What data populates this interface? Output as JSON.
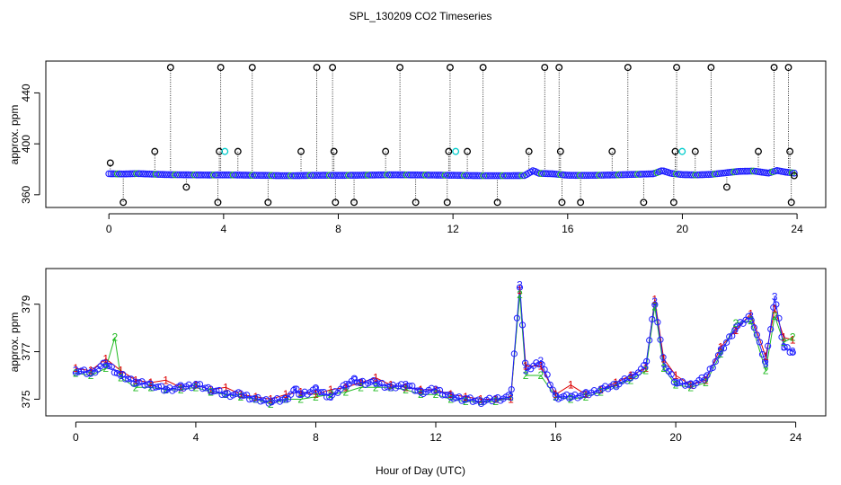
{
  "chart_data": [
    {
      "type": "scatter",
      "title": "SPL_130209  CO2 Timeseries",
      "xlabel": "",
      "ylabel": "approx. ppm",
      "xlim": [
        -2.2,
        25
      ],
      "ylim": [
        350,
        465
      ],
      "xticks": [
        0,
        4,
        8,
        12,
        16,
        20,
        24
      ],
      "yticks": [
        360,
        400,
        440
      ],
      "colors": {
        "baseline": "#1f1fff",
        "cyan": "#00cccc",
        "green": "#22bb22",
        "spikes": "#000000"
      },
      "baseline_x": [
        0,
        0.5,
        1,
        1.5,
        2,
        2.5,
        3,
        3.5,
        4,
        4.5,
        5,
        5.5,
        6,
        6.5,
        7,
        7.5,
        8,
        8.5,
        9,
        9.5,
        10,
        10.5,
        11,
        11.5,
        12,
        12.5,
        13,
        13.5,
        14,
        14.5,
        14.8,
        15,
        15.5,
        16,
        16.5,
        17,
        17.5,
        18,
        18.5,
        19,
        19.3,
        19.6,
        20,
        20.5,
        21,
        21.5,
        22,
        22.5,
        23,
        23.3,
        23.6,
        23.9
      ],
      "baseline_y": [
        376.5,
        376.3,
        376.6,
        376.2,
        375.8,
        375.7,
        375.6,
        375.5,
        375.6,
        375.5,
        375.3,
        375.2,
        375.0,
        375.0,
        375.2,
        375.3,
        375.2,
        375.3,
        375.4,
        375.6,
        375.7,
        375.6,
        375.5,
        375.4,
        375.3,
        375.1,
        375.0,
        375.0,
        375.0,
        375.1,
        379.0,
        376.8,
        376.4,
        375.3,
        375.2,
        375.3,
        375.5,
        375.8,
        376.1,
        376.5,
        379.0,
        376.8,
        375.8,
        375.6,
        376.0,
        377.2,
        378.4,
        378.6,
        377.0,
        379.0,
        377.8,
        377.0
      ],
      "spikes": [
        {
          "x": 0.05,
          "y": 385
        },
        {
          "x": 0.5,
          "y": 354
        },
        {
          "x": 1.6,
          "y": 394
        },
        {
          "x": 2.15,
          "y": 460
        },
        {
          "x": 2.7,
          "y": 366
        },
        {
          "x": 3.8,
          "y": 354
        },
        {
          "x": 3.85,
          "y": 394
        },
        {
          "x": 3.9,
          "y": 460
        },
        {
          "x": 4.5,
          "y": 394
        },
        {
          "x": 5.0,
          "y": 460
        },
        {
          "x": 5.55,
          "y": 354
        },
        {
          "x": 6.7,
          "y": 394
        },
        {
          "x": 7.25,
          "y": 460
        },
        {
          "x": 7.8,
          "y": 460
        },
        {
          "x": 7.85,
          "y": 394
        },
        {
          "x": 7.9,
          "y": 354
        },
        {
          "x": 8.55,
          "y": 354
        },
        {
          "x": 9.65,
          "y": 394
        },
        {
          "x": 10.15,
          "y": 460
        },
        {
          "x": 10.7,
          "y": 354
        },
        {
          "x": 11.8,
          "y": 354
        },
        {
          "x": 11.85,
          "y": 394
        },
        {
          "x": 11.9,
          "y": 460
        },
        {
          "x": 12.5,
          "y": 394
        },
        {
          "x": 13.05,
          "y": 460
        },
        {
          "x": 13.55,
          "y": 354
        },
        {
          "x": 14.65,
          "y": 394
        },
        {
          "x": 15.2,
          "y": 460
        },
        {
          "x": 15.7,
          "y": 460
        },
        {
          "x": 15.75,
          "y": 394
        },
        {
          "x": 15.8,
          "y": 354
        },
        {
          "x": 16.45,
          "y": 354
        },
        {
          "x": 17.55,
          "y": 394
        },
        {
          "x": 18.1,
          "y": 460
        },
        {
          "x": 18.65,
          "y": 354
        },
        {
          "x": 19.7,
          "y": 354
        },
        {
          "x": 19.75,
          "y": 394
        },
        {
          "x": 19.8,
          "y": 460
        },
        {
          "x": 20.45,
          "y": 394
        },
        {
          "x": 21.0,
          "y": 460
        },
        {
          "x": 21.55,
          "y": 366
        },
        {
          "x": 22.65,
          "y": 394
        },
        {
          "x": 23.2,
          "y": 460
        },
        {
          "x": 23.7,
          "y": 460
        },
        {
          "x": 23.75,
          "y": 394
        },
        {
          "x": 23.8,
          "y": 354
        },
        {
          "x": 23.9,
          "y": 375
        }
      ],
      "cyan_points": [
        {
          "x": 3.95,
          "y": 394
        },
        {
          "x": 12.0,
          "y": 394
        },
        {
          "x": 19.9,
          "y": 394
        }
      ]
    },
    {
      "type": "scatter",
      "title": "",
      "xlabel": "Hour of Day (UTC)",
      "ylabel": "approx. ppm",
      "xlim": [
        -1,
        25
      ],
      "ylim": [
        374.3,
        380.5
      ],
      "xticks": [
        0,
        4,
        8,
        12,
        16,
        20,
        24
      ],
      "yticks": [
        375,
        377,
        379
      ],
      "colors": {
        "series_1": "#dd0000",
        "series_2": "#22bb22",
        "series_3": "#1f1fff",
        "circles": "#1f1fff"
      },
      "series": [
        {
          "name": "1",
          "x": [
            0.0,
            0.5,
            1.0,
            1.5,
            2.0,
            2.5,
            3.0,
            3.5,
            4.0,
            4.5,
            5.0,
            5.5,
            6.0,
            6.5,
            7.0,
            7.5,
            8.0,
            8.5,
            9.0,
            9.5,
            10.0,
            10.5,
            11.0,
            11.5,
            12.0,
            12.5,
            13.0,
            13.5,
            14.0,
            14.5,
            14.8,
            15.0,
            15.5,
            16.0,
            16.5,
            17.0,
            17.5,
            18.0,
            18.5,
            19.0,
            19.3,
            19.6,
            20.0,
            20.5,
            21.0,
            21.5,
            22.0,
            22.5,
            23.0,
            23.3,
            23.6,
            23.9
          ],
          "y": [
            376.3,
            376.2,
            376.7,
            376.2,
            375.8,
            375.7,
            375.8,
            375.5,
            375.6,
            375.4,
            375.5,
            375.2,
            375.1,
            375.0,
            375.2,
            375.3,
            375.2,
            375.4,
            375.5,
            375.7,
            375.9,
            375.6,
            375.5,
            375.4,
            375.4,
            375.2,
            375.1,
            375.0,
            375.0,
            375.0,
            379.6,
            376.4,
            376.4,
            375.2,
            375.6,
            375.2,
            375.4,
            375.7,
            376.0,
            376.3,
            379.2,
            376.7,
            376.0,
            375.6,
            375.8,
            377.2,
            377.9,
            378.6,
            376.8,
            378.8,
            377.6,
            377.5
          ]
        },
        {
          "name": "2",
          "x": [
            0.0,
            0.5,
            1.0,
            1.3,
            1.5,
            2.0,
            2.5,
            3.0,
            3.5,
            4.0,
            4.5,
            5.0,
            5.5,
            6.0,
            6.5,
            7.0,
            7.5,
            8.0,
            8.5,
            9.0,
            9.5,
            10.0,
            10.5,
            11.0,
            11.5,
            12.0,
            12.5,
            13.0,
            13.5,
            14.0,
            14.5,
            14.8,
            15.0,
            15.5,
            16.0,
            16.5,
            17.0,
            17.5,
            18.0,
            18.5,
            19.0,
            19.3,
            19.6,
            20.0,
            20.5,
            21.0,
            21.5,
            22.0,
            22.5,
            23.0,
            23.3,
            23.6,
            23.9
          ],
          "y": [
            376.1,
            376.0,
            376.3,
            377.6,
            375.9,
            375.5,
            375.5,
            375.4,
            375.4,
            375.5,
            375.3,
            375.2,
            375.1,
            375.0,
            374.8,
            375.0,
            375.0,
            375.1,
            375.2,
            375.3,
            375.5,
            375.5,
            375.5,
            375.4,
            375.2,
            375.2,
            375.0,
            374.9,
            374.9,
            374.9,
            375.1,
            379.4,
            376.0,
            376.0,
            375.1,
            375.0,
            375.1,
            375.3,
            375.6,
            375.8,
            376.2,
            378.9,
            376.3,
            375.6,
            375.5,
            375.7,
            376.9,
            378.2,
            378.3,
            376.2,
            378.5,
            377.4,
            377.6
          ]
        },
        {
          "name": "3",
          "x": [
            0.0,
            0.5,
            1.0,
            1.5,
            2.0,
            2.5,
            3.0,
            3.5,
            4.0,
            4.5,
            5.0,
            5.5,
            6.0,
            6.5,
            7.0,
            7.3,
            7.5,
            8.0,
            8.5,
            9.0,
            9.3,
            9.5,
            10.0,
            10.5,
            11.0,
            11.5,
            12.0,
            12.5,
            13.0,
            13.5,
            14.0,
            14.5,
            14.8,
            15.0,
            15.5,
            16.0,
            16.5,
            17.0,
            17.5,
            18.0,
            18.5,
            19.0,
            19.3,
            19.6,
            20.0,
            20.5,
            21.0,
            21.5,
            22.0,
            22.5,
            23.0,
            23.3,
            23.6,
            23.9
          ],
          "y": [
            376.2,
            376.1,
            376.5,
            376.0,
            375.7,
            375.6,
            375.4,
            375.5,
            375.6,
            375.4,
            375.2,
            375.2,
            375.0,
            374.9,
            375.0,
            375.4,
            375.2,
            375.4,
            375.1,
            375.6,
            375.8,
            375.7,
            375.7,
            375.5,
            375.6,
            375.3,
            375.4,
            375.1,
            375.0,
            374.9,
            375.0,
            375.1,
            379.8,
            376.2,
            376.6,
            375.1,
            375.1,
            375.2,
            375.4,
            375.6,
            375.9,
            376.4,
            379.1,
            376.5,
            375.7,
            375.6,
            375.9,
            377.0,
            378.0,
            378.5,
            376.5,
            379.3,
            377.2,
            377.0
          ]
        }
      ]
    }
  ]
}
